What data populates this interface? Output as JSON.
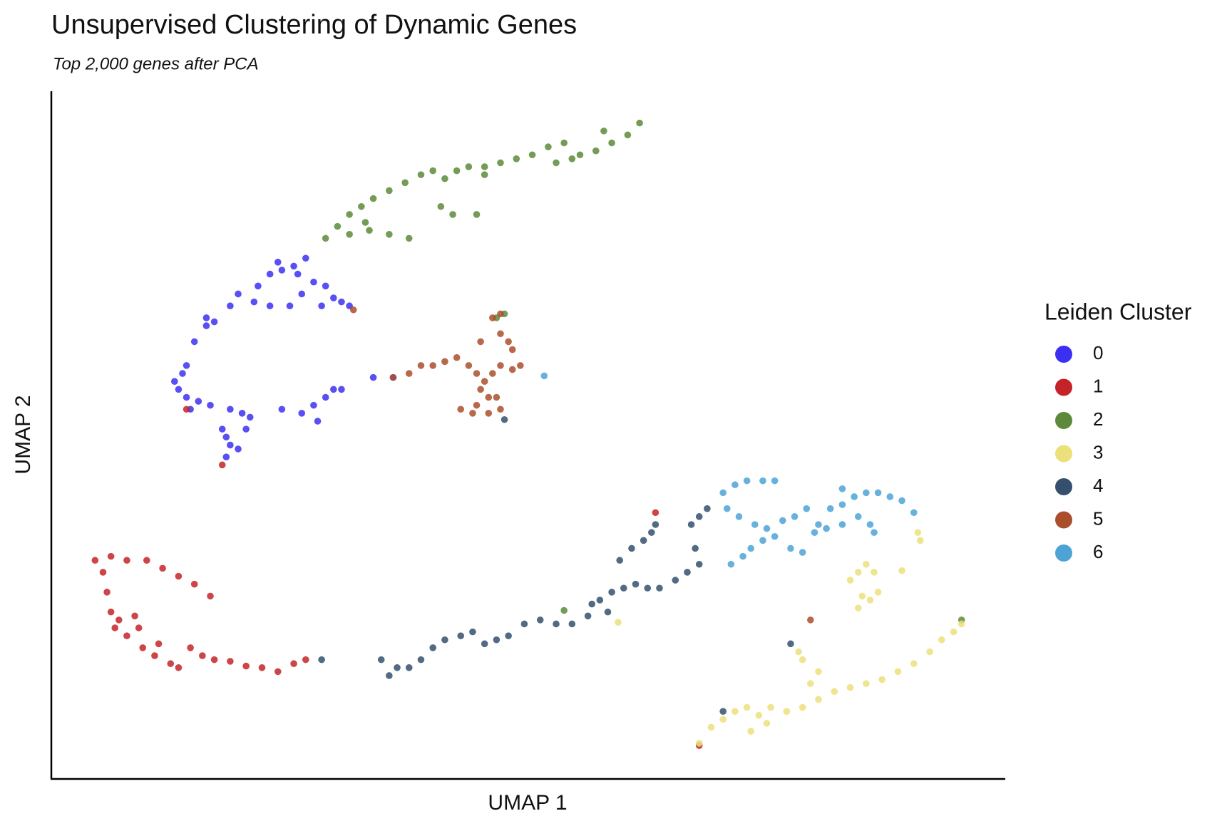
{
  "chart_data": {
    "type": "scatter",
    "title": "Unsupervised Clustering of Dynamic Genes",
    "subtitle": "Top 2,000 genes after PCA",
    "x_label": "UMAP 1",
    "y_label": "UMAP 2",
    "legend_title": "Leiden Cluster",
    "legend": "right",
    "xlim": [
      65,
      1265
    ],
    "ylim": [
      0,
      865
    ],
    "series": [
      {
        "name": "0",
        "color": "#3b30f2",
        "x": [
          385,
          370,
          355,
          340,
          325,
          300,
          290,
          270,
          260,
          245,
          235,
          230,
          225,
          235,
          250,
          265,
          290,
          305,
          315,
          285,
          290,
          300,
          285,
          380,
          395,
          410,
          420,
          430,
          355,
          470,
          495,
          380,
          395,
          410,
          420,
          430,
          405,
          320,
          340,
          365,
          350,
          375,
          440,
          220,
          240,
          310,
          280,
          400,
          260
        ],
        "values": [
          655,
          645,
          640,
          635,
          620,
          610,
          595,
          575,
          570,
          550,
          520,
          510,
          490,
          480,
          475,
          470,
          465,
          460,
          455,
          430,
          420,
          415,
          405,
          460,
          470,
          480,
          490,
          490,
          465,
          505,
          505,
          610,
          625,
          620,
          605,
          600,
          595,
          600,
          595,
          595,
          650,
          635,
          595,
          500,
          465,
          440,
          440,
          450,
          580
        ]
      },
      {
        "name": "1",
        "color": "#c42428",
        "x": [
          120,
          140,
          160,
          185,
          205,
          225,
          245,
          265,
          135,
          140,
          150,
          170,
          145,
          160,
          180,
          195,
          215,
          225,
          240,
          255,
          270,
          290,
          310,
          330,
          350,
          370,
          385,
          200,
          175,
          130,
          235,
          280,
          825,
          880
        ],
        "values": [
          275,
          280,
          275,
          275,
          265,
          255,
          245,
          230,
          235,
          210,
          200,
          205,
          190,
          180,
          165,
          155,
          145,
          140,
          165,
          155,
          150,
          148,
          142,
          140,
          135,
          145,
          150,
          170,
          190,
          260,
          465,
          395,
          335,
          42
        ]
      },
      {
        "name": "2",
        "color": "#5c8a3a",
        "x": [
          410,
          425,
          440,
          455,
          470,
          490,
          510,
          530,
          545,
          560,
          575,
          590,
          610,
          630,
          650,
          670,
          690,
          710,
          730,
          750,
          770,
          790,
          805,
          760,
          440,
          465,
          490,
          515,
          555,
          570,
          600,
          610,
          460,
          700,
          720,
          635,
          625,
          1210,
          710
        ],
        "values": [
          680,
          695,
          710,
          720,
          730,
          740,
          750,
          760,
          765,
          755,
          765,
          770,
          770,
          775,
          780,
          785,
          795,
          800,
          785,
          790,
          800,
          810,
          825,
          815,
          685,
          690,
          685,
          680,
          720,
          710,
          710,
          760,
          700,
          775,
          780,
          585,
          580,
          200,
          212
        ]
      },
      {
        "name": "3",
        "color": "#ebe07a",
        "x": [
          880,
          895,
          910,
          925,
          940,
          955,
          970,
          990,
          1010,
          1030,
          1050,
          1070,
          1090,
          1110,
          1130,
          1150,
          1170,
          1185,
          1200,
          1210,
          1020,
          1010,
          1005,
          945,
          1080,
          1090,
          1100,
          1070,
          1085,
          1095,
          1105,
          1080,
          1135,
          1155,
          1158,
          1030,
          965,
          778
        ],
        "values": [
          45,
          65,
          75,
          85,
          90,
          80,
          90,
          85,
          90,
          100,
          110,
          115,
          120,
          125,
          135,
          145,
          160,
          175,
          185,
          195,
          120,
          150,
          160,
          60,
          260,
          270,
          260,
          250,
          230,
          225,
          235,
          215,
          262,
          310,
          300,
          135,
          70,
          197
        ]
      },
      {
        "name": "4",
        "color": "#34506e",
        "x": [
          480,
          490,
          500,
          515,
          530,
          545,
          560,
          580,
          595,
          610,
          625,
          640,
          660,
          680,
          700,
          720,
          740,
          755,
          770,
          785,
          800,
          815,
          830,
          850,
          865,
          880,
          875,
          870,
          880,
          890,
          780,
          795,
          810,
          820,
          825,
          765,
          405,
          910,
          995,
          635,
          745
        ],
        "values": [
          150,
          130,
          140,
          140,
          150,
          165,
          175,
          180,
          185,
          170,
          175,
          180,
          195,
          200,
          195,
          195,
          205,
          225,
          235,
          240,
          245,
          240,
          240,
          250,
          260,
          270,
          290,
          320,
          330,
          340,
          275,
          290,
          300,
          310,
          320,
          210,
          150,
          85,
          170,
          452,
          220
        ]
      },
      {
        "name": "5",
        "color": "#ab4e2b",
        "x": [
          495,
          515,
          530,
          545,
          560,
          575,
          590,
          600,
          610,
          620,
          630,
          645,
          655,
          605,
          615,
          600,
          580,
          595,
          615,
          630,
          625,
          640,
          645,
          630,
          620,
          630,
          605,
          445,
          1020
        ],
        "values": [
          505,
          510,
          520,
          520,
          525,
          530,
          520,
          510,
          500,
          510,
          520,
          515,
          520,
          490,
          480,
          470,
          465,
          460,
          460,
          465,
          480,
          550,
          540,
          560,
          580,
          585,
          550,
          590,
          200
        ]
      },
      {
        "name": "6",
        "color": "#4ea3d6",
        "x": [
          910,
          925,
          940,
          960,
          975,
          915,
          930,
          950,
          965,
          985,
          1000,
          1015,
          1030,
          1045,
          1060,
          1075,
          1090,
          1105,
          1120,
          1135,
          1150,
          920,
          935,
          945,
          960,
          975,
          995,
          1010,
          1025,
          1040,
          1060,
          1080,
          1095,
          1100,
          1060,
          685
        ],
        "values": [
          360,
          370,
          375,
          375,
          375,
          340,
          330,
          320,
          315,
          325,
          330,
          340,
          320,
          340,
          345,
          355,
          360,
          360,
          355,
          350,
          335,
          270,
          280,
          290,
          300,
          305,
          290,
          285,
          310,
          315,
          320,
          330,
          320,
          310,
          365,
          507
        ]
      }
    ]
  }
}
